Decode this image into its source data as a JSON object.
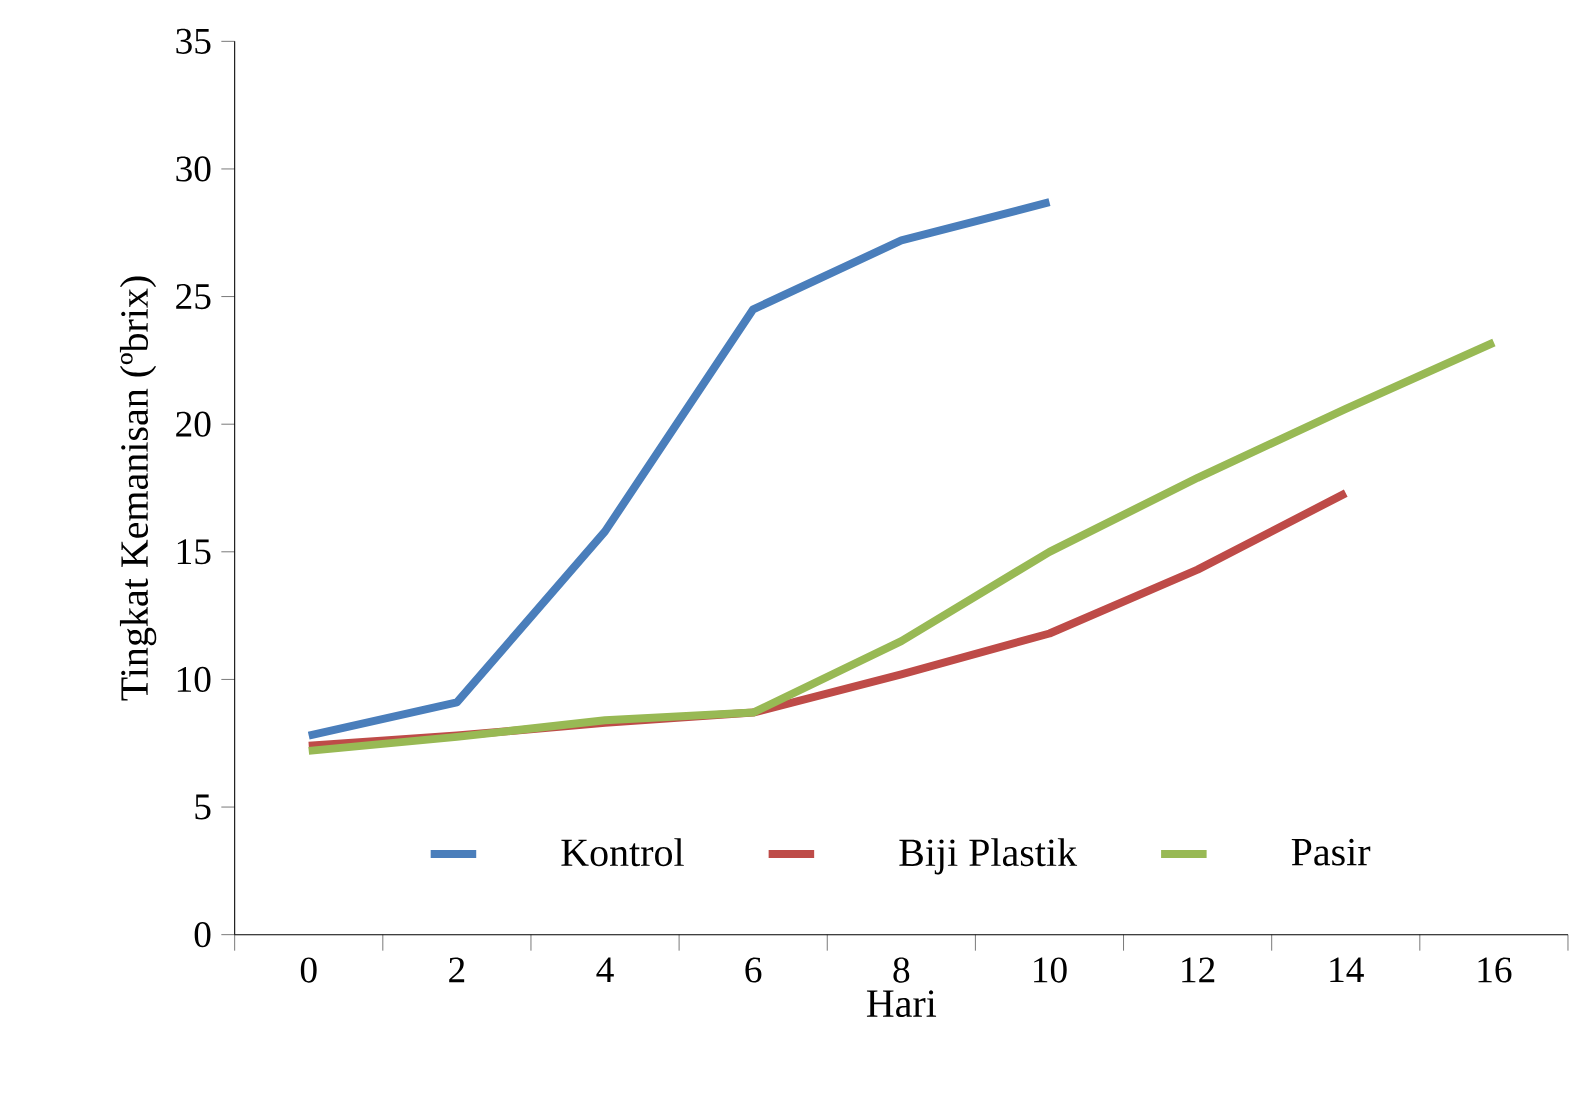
{
  "chart_data": {
    "type": "line",
    "xlabel": "Hari",
    "ylabel": "Tingkat Kemanisan (ºbrix)",
    "categories": [
      "0",
      "2",
      "4",
      "6",
      "8",
      "10",
      "12",
      "14",
      "16"
    ],
    "series": [
      {
        "name": "Kontrol",
        "color": "#4a7ebb",
        "values": [
          7.8,
          9.1,
          15.8,
          24.5,
          27.2,
          28.7,
          null,
          null,
          null
        ]
      },
      {
        "name": "Biji Plastik",
        "color": "#be4b48",
        "values": [
          7.4,
          7.8,
          8.3,
          8.7,
          10.2,
          11.8,
          14.3,
          17.3,
          null
        ]
      },
      {
        "name": "Pasir",
        "color": "#98b954",
        "values": [
          7.2,
          7.75,
          8.4,
          8.7,
          11.5,
          15.0,
          17.9,
          20.6,
          23.2
        ]
      }
    ],
    "ylim": [
      0,
      35
    ],
    "yticks": [
      0,
      5,
      10,
      15,
      20,
      25,
      30,
      35
    ],
    "grid": false,
    "legend": "bottom",
    "marker": "none",
    "line_style": "solid"
  }
}
